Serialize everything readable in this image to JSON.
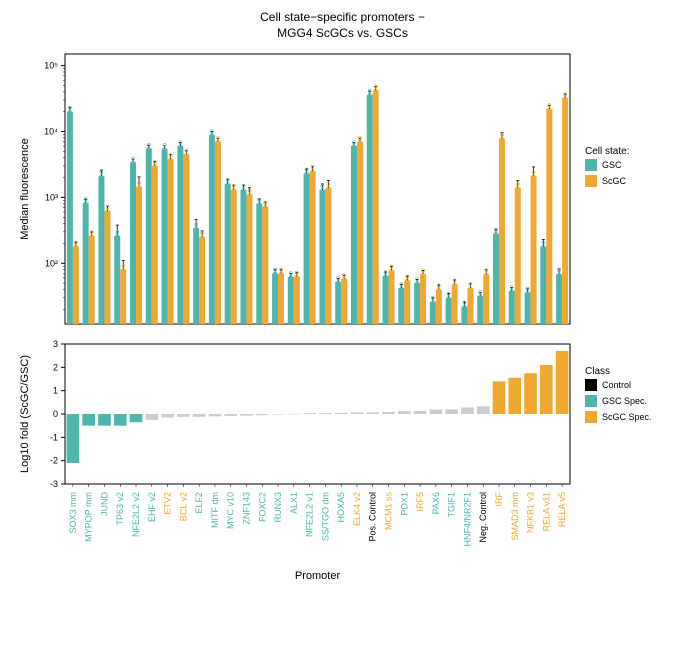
{
  "title_line1": "Cell state−specific promoters −",
  "title_line2": "MGG4 ScGCs vs. GSCs",
  "top_chart": {
    "ylabel": "Median fluorescence",
    "type": "grouped_bar_log",
    "ylim": [
      10,
      100000
    ],
    "yticks": [
      100,
      1000,
      10000,
      100000
    ],
    "ytick_labels": [
      "10²",
      "10³",
      "10⁴",
      "10⁵"
    ],
    "legend_title": "Cell state:",
    "legend_items": [
      {
        "label": "GSC",
        "color": "#4db6ac"
      },
      {
        "label": "ScGC",
        "color": "#f0a830"
      }
    ],
    "colors": {
      "gsc": "#4db6ac",
      "scgc": "#f0a830"
    },
    "error_color": "#000000",
    "marker_color_outer": "#888888",
    "bar_width": 0.4
  },
  "bottom_chart": {
    "ylabel": "Log10 fold (ScGC/GSC)",
    "xlabel": "Promoter",
    "type": "bar",
    "ylim": [
      -3,
      3
    ],
    "yticks": [
      -3,
      -2,
      -1,
      0,
      1,
      2,
      3
    ],
    "legend_title": "Class",
    "legend_items": [
      {
        "label": "Control",
        "color": "#000000"
      },
      {
        "label": "GSC Spec.",
        "color": "#4db6ac"
      },
      {
        "label": "ScGC Spec.",
        "color": "#f0a830"
      }
    ],
    "neutral_color": "#cccccc"
  },
  "promoters": [
    {
      "name": "SOX3 mm",
      "gsc": 20000,
      "scgc": 180,
      "err_gsc": 3000,
      "err_scgc": 30,
      "fold": -2.1,
      "class": "gsc",
      "label_color": "#4db6ac"
    },
    {
      "name": "MYPOP mm",
      "gsc": 820,
      "scgc": 260,
      "err_gsc": 120,
      "err_scgc": 40,
      "fold": -0.5,
      "class": "gsc",
      "label_color": "#4db6ac"
    },
    {
      "name": "JUND",
      "gsc": 2100,
      "scgc": 620,
      "err_gsc": 500,
      "err_scgc": 120,
      "fold": -0.5,
      "class": "gsc",
      "label_color": "#4db6ac"
    },
    {
      "name": "TP63 v2",
      "gsc": 260,
      "scgc": 80,
      "err_gsc": 120,
      "err_scgc": 30,
      "fold": -0.5,
      "class": "gsc",
      "label_color": "#4db6ac"
    },
    {
      "name": "NFE2L2 v2",
      "gsc": 3400,
      "scgc": 1450,
      "err_gsc": 400,
      "err_scgc": 600,
      "fold": -0.35,
      "class": "gsc",
      "label_color": "#4db6ac"
    },
    {
      "name": "EHF v2",
      "gsc": 5500,
      "scgc": 3000,
      "err_gsc": 700,
      "err_scgc": 500,
      "fold": -0.25,
      "class": "neutral",
      "label_color": "#4db6ac"
    },
    {
      "name": "ETV2",
      "gsc": 5500,
      "scgc": 3800,
      "err_gsc": 600,
      "err_scgc": 700,
      "fold": -0.15,
      "class": "neutral",
      "label_color": "#f0a830"
    },
    {
      "name": "BCL v2",
      "gsc": 6000,
      "scgc": 4500,
      "err_gsc": 800,
      "err_scgc": 600,
      "fold": -0.12,
      "class": "neutral",
      "label_color": "#f0a830"
    },
    {
      "name": "ELF2",
      "gsc": 340,
      "scgc": 250,
      "err_gsc": 120,
      "err_scgc": 60,
      "fold": -0.12,
      "class": "neutral",
      "label_color": "#4db6ac"
    },
    {
      "name": "MITF dm",
      "gsc": 8800,
      "scgc": 7000,
      "err_gsc": 1200,
      "err_scgc": 900,
      "fold": -0.1,
      "class": "neutral",
      "label_color": "#4db6ac"
    },
    {
      "name": "MYC v10",
      "gsc": 1600,
      "scgc": 1300,
      "err_gsc": 300,
      "err_scgc": 250,
      "fold": -0.08,
      "class": "neutral",
      "label_color": "#4db6ac"
    },
    {
      "name": "ZNF143",
      "gsc": 1300,
      "scgc": 1100,
      "err_gsc": 250,
      "err_scgc": 300,
      "fold": -0.07,
      "class": "neutral",
      "label_color": "#4db6ac"
    },
    {
      "name": "FOXC2",
      "gsc": 800,
      "scgc": 720,
      "err_gsc": 150,
      "err_scgc": 140,
      "fold": -0.05,
      "class": "neutral",
      "label_color": "#4db6ac"
    },
    {
      "name": "RUNX3",
      "gsc": 70,
      "scgc": 70,
      "err_gsc": 10,
      "err_scgc": 10,
      "fold": 0,
      "class": "neutral",
      "label_color": "#4db6ac"
    },
    {
      "name": "ALX1",
      "gsc": 62,
      "scgc": 63,
      "err_gsc": 8,
      "err_scgc": 9,
      "fold": 0.01,
      "class": "neutral",
      "label_color": "#4db6ac"
    },
    {
      "name": "NFE2L2 v1",
      "gsc": 2300,
      "scgc": 2500,
      "err_gsc": 400,
      "err_scgc": 500,
      "fold": 0.04,
      "class": "neutral",
      "label_color": "#4db6ac"
    },
    {
      "name": "SS/TGO dm",
      "gsc": 1300,
      "scgc": 1400,
      "err_gsc": 300,
      "err_scgc": 400,
      "fold": 0.04,
      "class": "neutral",
      "label_color": "#4db6ac"
    },
    {
      "name": "HOXA5",
      "gsc": 52,
      "scgc": 58,
      "err_gsc": 7,
      "err_scgc": 8,
      "fold": 0.05,
      "class": "neutral",
      "label_color": "#4db6ac"
    },
    {
      "name": "ELK4 v2",
      "gsc": 6000,
      "scgc": 7000,
      "err_gsc": 800,
      "err_scgc": 900,
      "fold": 0.07,
      "class": "neutral",
      "label_color": "#f0a830"
    },
    {
      "name": "Pos. Control",
      "gsc": 36000,
      "scgc": 42000,
      "err_gsc": 5000,
      "err_scgc": 6000,
      "fold": 0.07,
      "class": "control",
      "label_color": "#000000"
    },
    {
      "name": "MCM1 ss",
      "gsc": 64,
      "scgc": 78,
      "err_gsc": 10,
      "err_scgc": 12,
      "fold": 0.09,
      "class": "neutral",
      "label_color": "#f0a830"
    },
    {
      "name": "PDX1",
      "gsc": 42,
      "scgc": 55,
      "err_gsc": 6,
      "err_scgc": 9,
      "fold": 0.12,
      "class": "neutral",
      "label_color": "#4db6ac"
    },
    {
      "name": "IRF5",
      "gsc": 50,
      "scgc": 68,
      "err_gsc": 7,
      "err_scgc": 10,
      "fold": 0.13,
      "class": "neutral",
      "label_color": "#f0a830"
    },
    {
      "name": "PAX6",
      "gsc": 26,
      "scgc": 40,
      "err_gsc": 4,
      "err_scgc": 7,
      "fold": 0.19,
      "class": "neutral",
      "label_color": "#4db6ac"
    },
    {
      "name": "TGIF1",
      "gsc": 30,
      "scgc": 48,
      "err_gsc": 5,
      "err_scgc": 8,
      "fold": 0.2,
      "class": "neutral",
      "label_color": "#4db6ac"
    },
    {
      "name": "HNF4/NR2F1",
      "gsc": 22,
      "scgc": 42,
      "err_gsc": 4,
      "err_scgc": 8,
      "fold": 0.28,
      "class": "neutral",
      "label_color": "#4db6ac"
    },
    {
      "name": "Neg. Control",
      "gsc": 32,
      "scgc": 68,
      "err_gsc": 4,
      "err_scgc": 12,
      "fold": 0.33,
      "class": "control",
      "label_color": "#000000"
    },
    {
      "name": "IRF",
      "gsc": 280,
      "scgc": 7800,
      "err_gsc": 50,
      "err_scgc": 1800,
      "fold": 1.4,
      "class": "scgc",
      "label_color": "#f0a830"
    },
    {
      "name": "SMAD3 mm",
      "gsc": 38,
      "scgc": 1400,
      "err_gsc": 5,
      "err_scgc": 400,
      "fold": 1.55,
      "class": "scgc",
      "label_color": "#f0a830"
    },
    {
      "name": "NFKB1 v3",
      "gsc": 36,
      "scgc": 2100,
      "err_gsc": 5,
      "err_scgc": 800,
      "fold": 1.75,
      "class": "scgc",
      "label_color": "#f0a830"
    },
    {
      "name": "RELA v11",
      "gsc": 180,
      "scgc": 22000,
      "err_gsc": 50,
      "err_scgc": 3000,
      "fold": 2.1,
      "class": "scgc",
      "label_color": "#f0a830"
    },
    {
      "name": "RELA v5",
      "gsc": 68,
      "scgc": 32000,
      "err_gsc": 15,
      "err_scgc": 5000,
      "fold": 2.7,
      "class": "scgc",
      "label_color": "#f0a830"
    }
  ],
  "background_color": "#ffffff",
  "axis_color": "#000000",
  "font_family": "Arial"
}
